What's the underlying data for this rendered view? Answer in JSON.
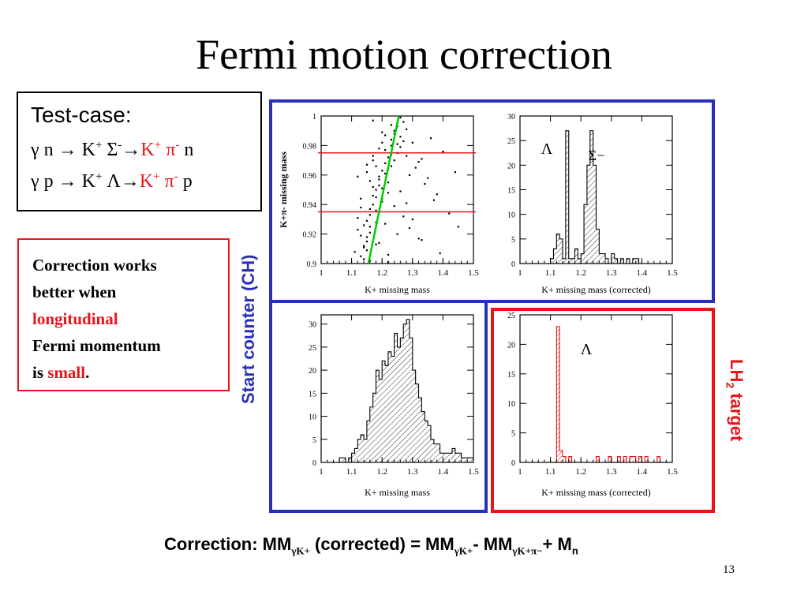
{
  "slide": {
    "title": "Fermi motion correction",
    "page_number": "13"
  },
  "test_case": {
    "heading": "Test-case:",
    "reaction1": {
      "lhs": "γ n → K",
      "s1": "+",
      "mid": " Σ",
      "s2": "-",
      "arrow": "→",
      "out1": "K",
      "out1s": "+",
      "out2": " π",
      "out2s": "-",
      "tail": " n"
    },
    "reaction2": {
      "lhs": "γ p → K",
      "s1": "+",
      "mid": " Λ",
      "arrow": "→",
      "out1": "K",
      "out1s": "+",
      "out2": " π",
      "out2s": "-",
      "tail": " p"
    }
  },
  "note": {
    "line1": "Correction works",
    "line2": "better when",
    "line3": "longitudinal",
    "line4": "Fermi momentum",
    "line5a": "is ",
    "line5b": "small",
    "line5c": "."
  },
  "labels": {
    "start_counter": "Start counter (CH)",
    "lh2_main": "LH",
    "lh2_sub": "2",
    "lh2_tail": " target"
  },
  "formula": {
    "part1": "Correction: MM",
    "sub1": "γK+",
    "part2": " (corrected) = MM",
    "sub2": "γK+",
    "part3": "- MM",
    "sub3": "γK+π−",
    "part4": "+ M",
    "sub4": "n"
  },
  "colors": {
    "red": "#e8141b",
    "blue": "#2a2fb8",
    "green": "#00cc00"
  },
  "chart_data": [
    {
      "type": "scatter",
      "panel": "top-left",
      "xlabel": "K+ missing mass",
      "ylabel": "K+π- missing mass",
      "xlim": [
        1.0,
        1.5
      ],
      "ylim": [
        0.9,
        1.0
      ],
      "xticks": [
        "1",
        "1.1",
        "1.2",
        "1.3",
        "1.4",
        "1.5"
      ],
      "yticks": [
        "0.9",
        "0.92",
        "0.94",
        "0.96",
        "0.98",
        "1"
      ],
      "hlines": [
        0.975,
        0.935
      ],
      "fit_line": {
        "x": [
          1.155,
          1.255
        ],
        "y": [
          0.9,
          1.0
        ]
      },
      "points": {
        "x": [
          1.13,
          1.14,
          1.15,
          1.16,
          1.12,
          1.18,
          1.2,
          1.22,
          1.17,
          1.19,
          1.21,
          1.23,
          1.24,
          1.25,
          1.26,
          1.27,
          1.14,
          1.15,
          1.16,
          1.18,
          1.2,
          1.22,
          1.13,
          1.17,
          1.19,
          1.21,
          1.23,
          1.25,
          1.26,
          1.28,
          1.15,
          1.16,
          1.18,
          1.2,
          1.22,
          1.24,
          1.14,
          1.17,
          1.19,
          1.21,
          1.11,
          1.13,
          1.15,
          1.16,
          1.18,
          1.2,
          1.22,
          1.23,
          1.25,
          1.27,
          1.3,
          1.32,
          1.35,
          1.38,
          1.42,
          1.12,
          1.14,
          1.16,
          1.19,
          1.21,
          1.24,
          1.26,
          1.29,
          1.33,
          1.36,
          1.4,
          1.44,
          1.17,
          1.2,
          1.23,
          1.28,
          1.31,
          1.34,
          1.37,
          1.18,
          1.22,
          1.25,
          1.27,
          1.29,
          1.32,
          1.15,
          1.17,
          1.19,
          1.21,
          1.23,
          1.26,
          1.13,
          1.16,
          1.18,
          1.2,
          1.24,
          1.28,
          1.3,
          1.33,
          1.39,
          1.45,
          1.12,
          1.15,
          1.17,
          1.19,
          1.22
        ],
        "y": [
          0.905,
          0.912,
          0.918,
          0.925,
          0.931,
          0.936,
          0.942,
          0.948,
          0.952,
          0.957,
          0.961,
          0.966,
          0.97,
          0.975,
          0.979,
          0.983,
          0.903,
          0.909,
          0.921,
          0.928,
          0.944,
          0.955,
          0.938,
          0.946,
          0.959,
          0.968,
          0.974,
          0.981,
          0.986,
          0.991,
          0.915,
          0.933,
          0.95,
          0.963,
          0.972,
          0.988,
          0.926,
          0.94,
          0.953,
          0.977,
          0.908,
          0.919,
          0.929,
          0.937,
          0.945,
          0.951,
          0.964,
          0.98,
          0.993,
          0.996,
          0.982,
          0.969,
          0.958,
          0.947,
          0.934,
          0.923,
          0.911,
          0.902,
          0.914,
          0.927,
          0.939,
          0.949,
          0.96,
          0.971,
          0.985,
          0.976,
          0.962,
          0.997,
          0.989,
          0.984,
          0.973,
          0.965,
          0.954,
          0.943,
          0.913,
          0.906,
          0.92,
          0.932,
          0.924,
          0.917,
          0.962,
          0.97,
          0.978,
          0.987,
          0.994,
          0.999,
          0.944,
          0.956,
          0.966,
          0.982,
          0.99,
          0.941,
          0.93,
          0.916,
          0.907,
          0.925,
          0.959,
          0.967,
          0.973,
          0.935,
          0.901
        ]
      }
    },
    {
      "type": "bar",
      "panel": "top-right",
      "xlabel": "K+ missing mass (corrected)",
      "xlim": [
        1.0,
        1.5
      ],
      "ylim": [
        0,
        30
      ],
      "xticks": [
        "1",
        "1.1",
        "1.2",
        "1.3",
        "1.4",
        "1.5"
      ],
      "yticks": [
        "0",
        "5",
        "10",
        "15",
        "20",
        "25",
        "30"
      ],
      "annotations": [
        "Λ",
        "Σ−"
      ],
      "bin_width": 0.01,
      "bin_start": 1.04,
      "values": [
        0,
        0,
        0,
        0,
        0,
        0,
        1,
        3,
        6,
        5,
        1,
        27,
        1,
        1,
        3,
        1,
        2,
        12,
        20,
        27,
        20,
        7,
        2,
        2,
        1,
        0,
        2,
        1,
        0,
        1,
        0,
        1,
        0,
        1,
        1,
        0,
        0,
        0,
        0,
        0,
        0,
        0,
        0,
        0,
        0,
        0
      ]
    },
    {
      "type": "bar",
      "panel": "bottom-left",
      "xlabel": "K+ missing mass",
      "xlim": [
        1.0,
        1.5
      ],
      "ylim": [
        0,
        32
      ],
      "xticks": [
        "1",
        "1.1",
        "1.2",
        "1.3",
        "1.4",
        "1.5"
      ],
      "yticks": [
        "0",
        "5",
        "10",
        "15",
        "20",
        "25",
        "30"
      ],
      "bin_width": 0.01,
      "bin_start": 1.0,
      "values": [
        0,
        0,
        0,
        0,
        0,
        0,
        1,
        1,
        0,
        1,
        2,
        3,
        5,
        6,
        5,
        9,
        12,
        15,
        20,
        18,
        22,
        21,
        24,
        23,
        28,
        25,
        27,
        30,
        31,
        27,
        20,
        17,
        14,
        11,
        9,
        8,
        5,
        4,
        4,
        2,
        2,
        2,
        2,
        3,
        2,
        2,
        1,
        1,
        1,
        1
      ]
    },
    {
      "type": "bar",
      "panel": "bottom-right",
      "xlabel": "K+ missing mass (corrected)",
      "xlim": [
        1.0,
        1.5
      ],
      "ylim": [
        0,
        25
      ],
      "xticks": [
        "1",
        "1.1",
        "1.2",
        "1.3",
        "1.4",
        "1.5"
      ],
      "yticks": [
        "0",
        "5",
        "10",
        "15",
        "20",
        "25"
      ],
      "annotations": [
        "Λ"
      ],
      "bin_width": 0.01,
      "bin_start": 1.0,
      "values": [
        0,
        0,
        0,
        0,
        0,
        0,
        0,
        0,
        0,
        0,
        0,
        0,
        23,
        2,
        1,
        0,
        1,
        0,
        0,
        0,
        0,
        0,
        0,
        0,
        0,
        1,
        0,
        0,
        0,
        1,
        0,
        0,
        1,
        0,
        1,
        0,
        1,
        1,
        0,
        1,
        0,
        1,
        0,
        0,
        0,
        1,
        0,
        0,
        0,
        0
      ]
    }
  ]
}
